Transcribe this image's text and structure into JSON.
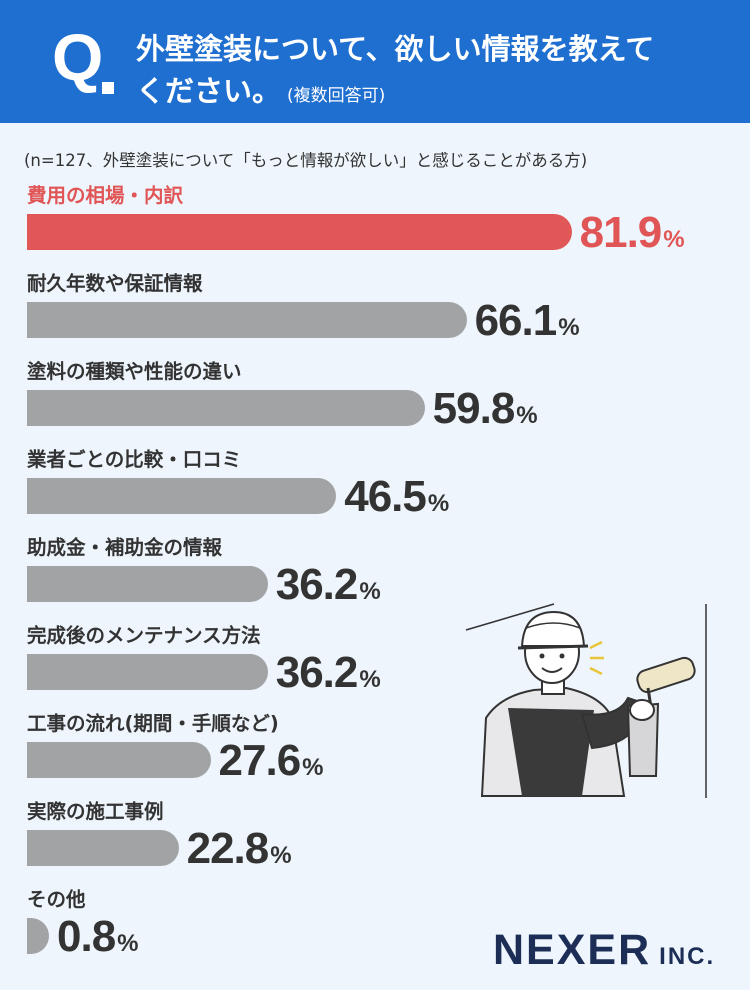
{
  "header": {
    "mark": "Q",
    "question_line1": "外壁塗装について、欲しい情報を教えて",
    "question_line2": "ください。",
    "question_note": "(複数回答可)"
  },
  "sample_note": "(n=127、外壁塗装について「もっと情報が欲しい」と感じることがある方)",
  "colors": {
    "header": "#1f6fd1",
    "highlight": "#e15656",
    "bar": "#a2a3a5",
    "background": "#eef5fc",
    "brand": "#1d2e56"
  },
  "chart_data": {
    "type": "bar",
    "orientation": "horizontal",
    "unit": "%",
    "categories": [
      "費用の相場・内訳",
      "耐久年数や保証情報",
      "塗料の種類や性能の違い",
      "業者ごとの比較・口コミ",
      "助成金・補助金の情報",
      "完成後のメンテナンス方法",
      "工事の流れ(期間・手順など)",
      "実際の施工事例",
      "その他"
    ],
    "values": [
      81.9,
      66.1,
      59.8,
      46.5,
      36.2,
      36.2,
      27.6,
      22.8,
      0.8
    ],
    "value_labels": [
      "81.9",
      "66.1",
      "59.8",
      "46.5",
      "36.2",
      "36.2",
      "27.6",
      "22.8",
      "0.8"
    ],
    "highlight_index": 0,
    "xlim": [
      0,
      100
    ]
  },
  "brand": {
    "name": "NEXER",
    "suffix": "INC."
  }
}
